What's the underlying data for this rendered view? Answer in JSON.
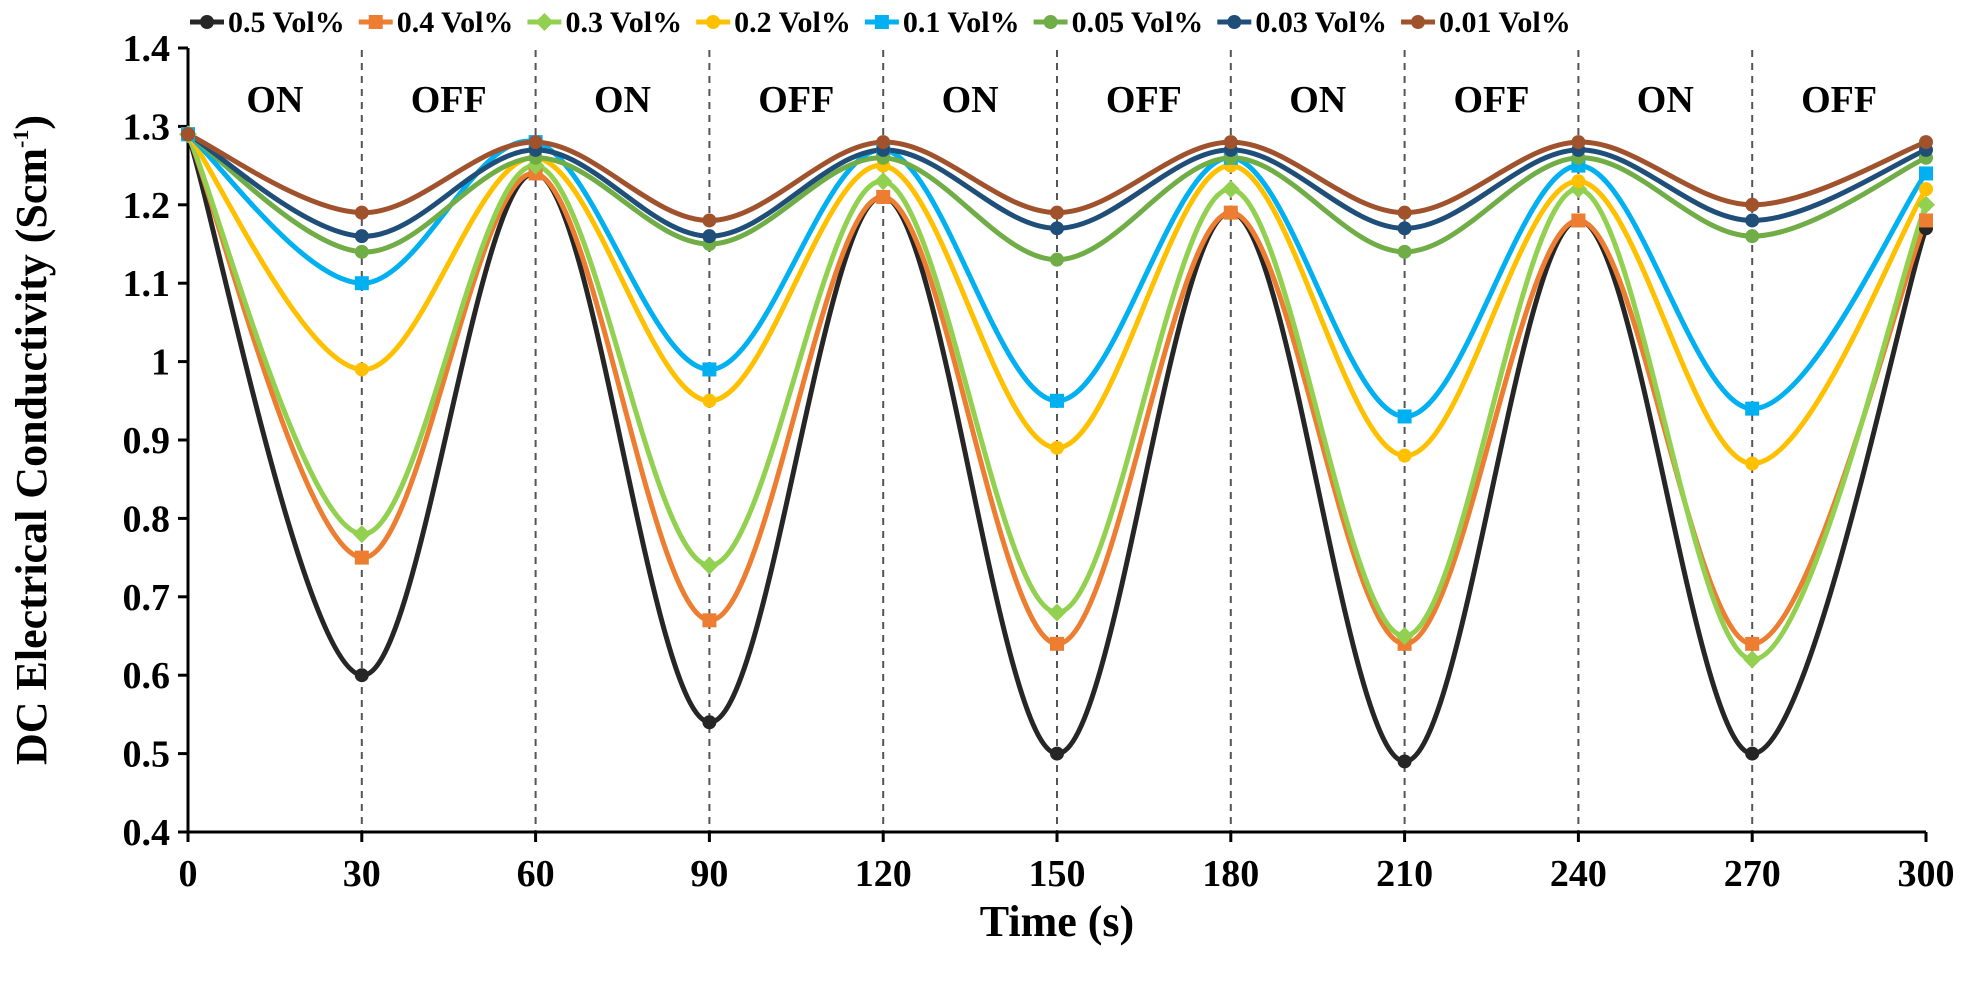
{
  "chart_data": {
    "type": "line",
    "title": "",
    "xlabel": "Time (s)",
    "ylabel_main": "DC Electrical Conductivity (Scm",
    "ylabel_sup": "-1",
    "ylabel_close": ")",
    "xlim": [
      0,
      300
    ],
    "ylim": [
      0.4,
      1.4
    ],
    "x_ticks": [
      "0",
      "30",
      "60",
      "90",
      "120",
      "150",
      "180",
      "210",
      "240",
      "270",
      "300"
    ],
    "y_ticks": [
      "0.4",
      "0.5",
      "0.6",
      "0.7",
      "0.8",
      "0.9",
      "1",
      "1.1",
      "1.2",
      "1.3",
      "1.4"
    ],
    "x": [
      0,
      30,
      60,
      90,
      120,
      150,
      180,
      210,
      240,
      270,
      300
    ],
    "phase_labels": [
      "ON",
      "OFF",
      "ON",
      "OFF",
      "ON",
      "OFF",
      "ON",
      "OFF",
      "ON",
      "OFF"
    ],
    "switch_times": [
      30,
      60,
      90,
      120,
      150,
      180,
      210,
      240,
      270
    ],
    "series": [
      {
        "name": "0.5 Vol%",
        "color": "#262626",
        "marker": "circle",
        "values": [
          1.29,
          0.6,
          1.24,
          0.54,
          1.21,
          0.5,
          1.19,
          0.49,
          1.18,
          0.5,
          1.17
        ]
      },
      {
        "name": "0.4 Vol%",
        "color": "#ED7D31",
        "marker": "square",
        "values": [
          1.29,
          0.75,
          1.24,
          0.67,
          1.21,
          0.64,
          1.19,
          0.64,
          1.18,
          0.64,
          1.18
        ]
      },
      {
        "name": "0.3 Vol%",
        "color": "#92D050",
        "marker": "diamond",
        "values": [
          1.29,
          0.78,
          1.25,
          0.74,
          1.23,
          0.68,
          1.22,
          0.65,
          1.22,
          0.62,
          1.2
        ]
      },
      {
        "name": "0.2 Vol%",
        "color": "#FFC000",
        "marker": "circle",
        "values": [
          1.29,
          0.99,
          1.26,
          0.95,
          1.25,
          0.89,
          1.25,
          0.88,
          1.23,
          0.87,
          1.22
        ]
      },
      {
        "name": "0.1 Vol%",
        "color": "#00B0F0",
        "marker": "square",
        "values": [
          1.29,
          1.1,
          1.28,
          0.99,
          1.27,
          0.95,
          1.26,
          0.93,
          1.25,
          0.94,
          1.24
        ]
      },
      {
        "name": "0.05 Vol%",
        "color": "#70AD47",
        "marker": "circle",
        "values": [
          1.29,
          1.14,
          1.26,
          1.15,
          1.26,
          1.13,
          1.26,
          1.14,
          1.26,
          1.16,
          1.26
        ]
      },
      {
        "name": "0.03 Vol%",
        "color": "#1F4E79",
        "marker": "circle",
        "values": [
          1.29,
          1.16,
          1.27,
          1.16,
          1.27,
          1.17,
          1.27,
          1.17,
          1.27,
          1.18,
          1.27
        ]
      },
      {
        "name": "0.01 Vol%",
        "color": "#A0522D",
        "marker": "circle",
        "values": [
          1.29,
          1.19,
          1.28,
          1.18,
          1.28,
          1.19,
          1.28,
          1.19,
          1.28,
          1.2,
          1.28
        ]
      }
    ],
    "grid": false,
    "legend": "top"
  }
}
